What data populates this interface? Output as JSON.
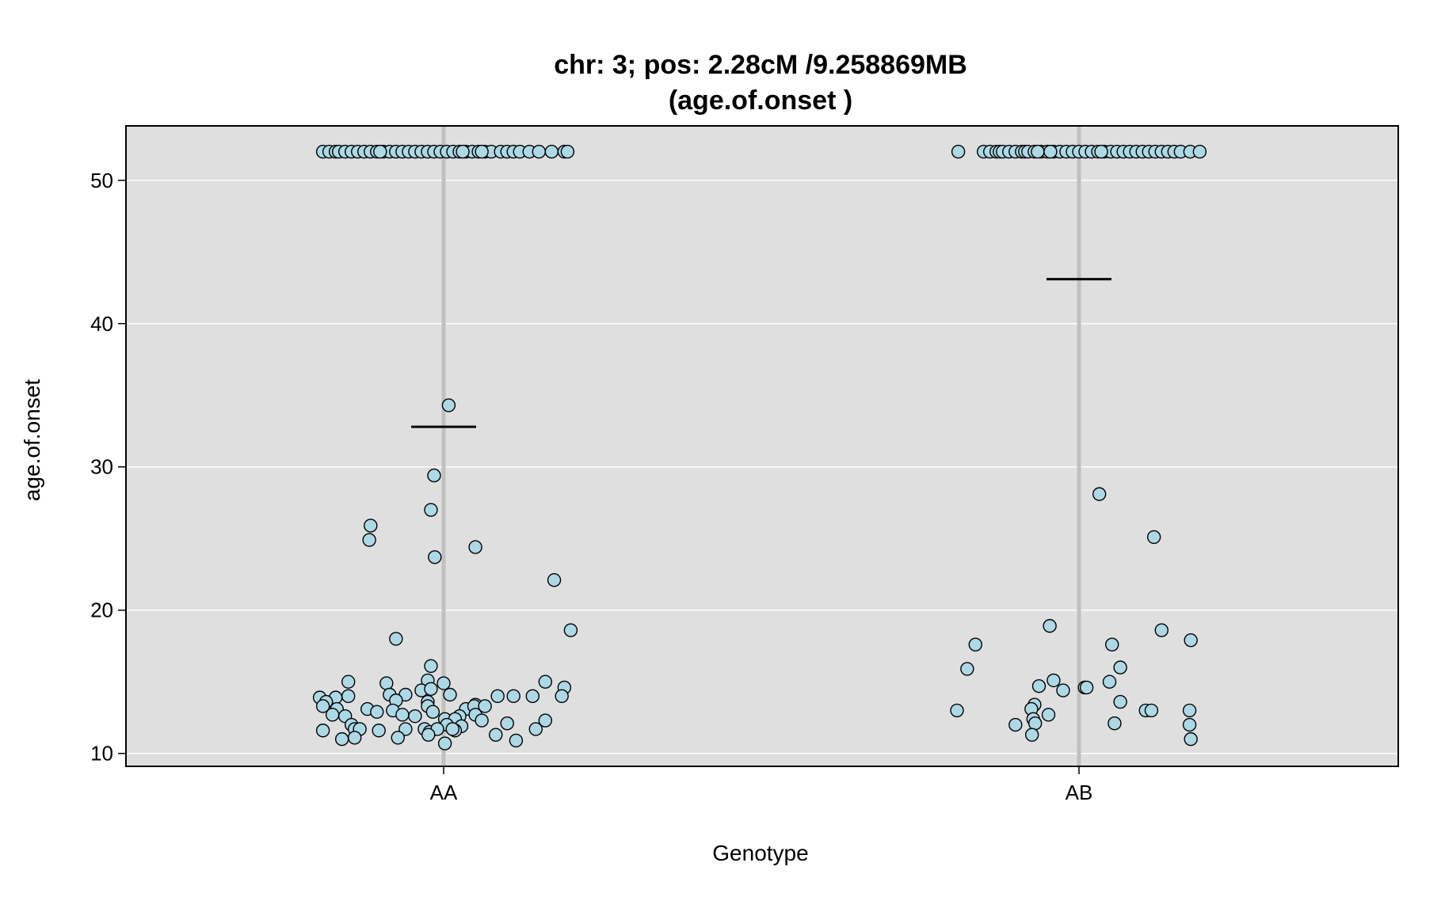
{
  "chart_data": {
    "type": "scatter",
    "title": "chr: 3; pos: 2.28cM /9.258869MB",
    "subtitle": "(age.of.onset )",
    "xlabel": "Genotype",
    "ylabel": "age.of.onset",
    "categories": [
      "AA",
      "AB"
    ],
    "ylim": [
      9.1,
      53.8
    ],
    "yticks": [
      10,
      20,
      30,
      40,
      50
    ],
    "grid": true,
    "colors": {
      "panel": "#dfdfdf",
      "grid": "#ffffff",
      "category_line": "#c0c0c0",
      "point_fill": "#add8e6",
      "point_stroke": "#000000",
      "mean_line": "#000000"
    },
    "means": [
      32.8,
      43.1
    ],
    "series": [
      {
        "category": "AA",
        "points": [
          {
            "x": -0.19,
            "y": 52
          },
          {
            "x": -0.18,
            "y": 52
          },
          {
            "x": -0.17,
            "y": 52
          },
          {
            "x": -0.165,
            "y": 52
          },
          {
            "x": -0.155,
            "y": 52
          },
          {
            "x": -0.145,
            "y": 52
          },
          {
            "x": -0.135,
            "y": 52
          },
          {
            "x": -0.125,
            "y": 52
          },
          {
            "x": -0.115,
            "y": 52
          },
          {
            "x": -0.105,
            "y": 52
          },
          {
            "x": -0.095,
            "y": 52
          },
          {
            "x": -0.085,
            "y": 52
          },
          {
            "x": -0.075,
            "y": 52
          },
          {
            "x": -0.065,
            "y": 52
          },
          {
            "x": -0.055,
            "y": 52
          },
          {
            "x": -0.045,
            "y": 52
          },
          {
            "x": -0.035,
            "y": 52
          },
          {
            "x": -0.025,
            "y": 52
          },
          {
            "x": -0.015,
            "y": 52
          },
          {
            "x": -0.005,
            "y": 52
          },
          {
            "x": 0.005,
            "y": 52
          },
          {
            "x": 0.015,
            "y": 52
          },
          {
            "x": 0.025,
            "y": 52
          },
          {
            "x": 0.035,
            "y": 52
          },
          {
            "x": 0.045,
            "y": 52
          },
          {
            "x": 0.055,
            "y": 52
          },
          {
            "x": 0.065,
            "y": 52
          },
          {
            "x": 0.075,
            "y": 52
          },
          {
            "x": 0.09,
            "y": 52
          },
          {
            "x": 0.1,
            "y": 52
          },
          {
            "x": 0.11,
            "y": 52
          },
          {
            "x": 0.12,
            "y": 52
          },
          {
            "x": 0.135,
            "y": 52
          },
          {
            "x": 0.15,
            "y": 52
          },
          {
            "x": 0.17,
            "y": 52
          },
          {
            "x": 0.19,
            "y": 52
          },
          {
            "x": 0.195,
            "y": 52
          },
          {
            "x": -0.1,
            "y": 52
          },
          {
            "x": 0.03,
            "y": 52
          },
          {
            "x": 0.06,
            "y": 52
          },
          {
            "x": 0.008,
            "y": 34.3
          },
          {
            "x": -0.015,
            "y": 29.4
          },
          {
            "x": -0.02,
            "y": 27.0
          },
          {
            "x": -0.115,
            "y": 25.9
          },
          {
            "x": -0.117,
            "y": 24.9
          },
          {
            "x": 0.05,
            "y": 24.4
          },
          {
            "x": -0.014,
            "y": 23.7
          },
          {
            "x": 0.174,
            "y": 22.1
          },
          {
            "x": 0.2,
            "y": 18.6
          },
          {
            "x": -0.075,
            "y": 18.0
          },
          {
            "x": -0.02,
            "y": 16.1
          },
          {
            "x": -0.15,
            "y": 15.0
          },
          {
            "x": -0.09,
            "y": 14.9
          },
          {
            "x": -0.025,
            "y": 15.1
          },
          {
            "x": 0.0,
            "y": 14.9
          },
          {
            "x": 0.16,
            "y": 15.0
          },
          {
            "x": 0.19,
            "y": 14.6
          },
          {
            "x": -0.195,
            "y": 13.9
          },
          {
            "x": -0.17,
            "y": 13.9
          },
          {
            "x": -0.15,
            "y": 14.0
          },
          {
            "x": -0.085,
            "y": 14.1
          },
          {
            "x": -0.06,
            "y": 14.1
          },
          {
            "x": -0.035,
            "y": 14.4
          },
          {
            "x": 0.01,
            "y": 14.1
          },
          {
            "x": 0.085,
            "y": 14.0
          },
          {
            "x": 0.11,
            "y": 14.0
          },
          {
            "x": 0.14,
            "y": 14.0
          },
          {
            "x": 0.186,
            "y": 14.0
          },
          {
            "x": -0.02,
            "y": 14.5
          },
          {
            "x": -0.185,
            "y": 13.6
          },
          {
            "x": -0.075,
            "y": 13.7
          },
          {
            "x": -0.025,
            "y": 13.6
          },
          {
            "x": 0.05,
            "y": 13.4
          },
          {
            "x": -0.19,
            "y": 13.3
          },
          {
            "x": -0.168,
            "y": 13.1
          },
          {
            "x": -0.12,
            "y": 13.1
          },
          {
            "x": -0.105,
            "y": 12.9
          },
          {
            "x": -0.08,
            "y": 13.0
          },
          {
            "x": -0.025,
            "y": 13.3
          },
          {
            "x": -0.017,
            "y": 12.9
          },
          {
            "x": 0.035,
            "y": 13.1
          },
          {
            "x": 0.048,
            "y": 13.3
          },
          {
            "x": 0.065,
            "y": 13.3
          },
          {
            "x": -0.175,
            "y": 12.7
          },
          {
            "x": -0.155,
            "y": 12.6
          },
          {
            "x": -0.065,
            "y": 12.7
          },
          {
            "x": -0.045,
            "y": 12.6
          },
          {
            "x": 0.025,
            "y": 12.6
          },
          {
            "x": 0.05,
            "y": 12.7
          },
          {
            "x": 0.06,
            "y": 12.3
          },
          {
            "x": 0.16,
            "y": 12.3
          },
          {
            "x": 0.002,
            "y": 12.4
          },
          {
            "x": 0.018,
            "y": 12.4
          },
          {
            "x": -0.145,
            "y": 12.0
          },
          {
            "x": 0.005,
            "y": 12.0
          },
          {
            "x": 0.1,
            "y": 12.1
          },
          {
            "x": 0.028,
            "y": 11.9
          },
          {
            "x": -0.19,
            "y": 11.6
          },
          {
            "x": -0.14,
            "y": 11.7
          },
          {
            "x": -0.132,
            "y": 11.7
          },
          {
            "x": -0.102,
            "y": 11.6
          },
          {
            "x": -0.06,
            "y": 11.7
          },
          {
            "x": -0.03,
            "y": 11.7
          },
          {
            "x": -0.022,
            "y": 11.5
          },
          {
            "x": -0.01,
            "y": 11.7
          },
          {
            "x": 0.018,
            "y": 11.6
          },
          {
            "x": 0.014,
            "y": 11.7
          },
          {
            "x": 0.145,
            "y": 11.7
          },
          {
            "x": -0.024,
            "y": 11.3
          },
          {
            "x": 0.082,
            "y": 11.3
          },
          {
            "x": -0.16,
            "y": 11.0
          },
          {
            "x": -0.14,
            "y": 11.1
          },
          {
            "x": -0.072,
            "y": 11.1
          },
          {
            "x": 0.114,
            "y": 10.9
          },
          {
            "x": 0.002,
            "y": 10.7
          }
        ]
      },
      {
        "category": "AB",
        "points": [
          {
            "x": -0.19,
            "y": 52
          },
          {
            "x": -0.15,
            "y": 52
          },
          {
            "x": -0.14,
            "y": 52
          },
          {
            "x": -0.13,
            "y": 52
          },
          {
            "x": -0.125,
            "y": 52
          },
          {
            "x": -0.12,
            "y": 52
          },
          {
            "x": -0.11,
            "y": 52
          },
          {
            "x": -0.1,
            "y": 52
          },
          {
            "x": -0.09,
            "y": 52
          },
          {
            "x": -0.085,
            "y": 52
          },
          {
            "x": -0.08,
            "y": 52
          },
          {
            "x": -0.07,
            "y": 52
          },
          {
            "x": -0.06,
            "y": 52
          },
          {
            "x": -0.05,
            "y": 52
          },
          {
            "x": -0.04,
            "y": 52
          },
          {
            "x": -0.03,
            "y": 52
          },
          {
            "x": -0.02,
            "y": 52
          },
          {
            "x": -0.01,
            "y": 52
          },
          {
            "x": 0.0,
            "y": 52
          },
          {
            "x": 0.01,
            "y": 52
          },
          {
            "x": 0.02,
            "y": 52
          },
          {
            "x": 0.03,
            "y": 52
          },
          {
            "x": 0.04,
            "y": 52
          },
          {
            "x": 0.05,
            "y": 52
          },
          {
            "x": 0.06,
            "y": 52
          },
          {
            "x": 0.07,
            "y": 52
          },
          {
            "x": 0.08,
            "y": 52
          },
          {
            "x": 0.09,
            "y": 52
          },
          {
            "x": 0.1,
            "y": 52
          },
          {
            "x": 0.11,
            "y": 52
          },
          {
            "x": 0.12,
            "y": 52
          },
          {
            "x": 0.13,
            "y": 52
          },
          {
            "x": 0.14,
            "y": 52
          },
          {
            "x": 0.15,
            "y": 52
          },
          {
            "x": 0.16,
            "y": 52
          },
          {
            "x": 0.175,
            "y": 52
          },
          {
            "x": 0.19,
            "y": 52
          },
          {
            "x": -0.065,
            "y": 52
          },
          {
            "x": -0.045,
            "y": 52
          },
          {
            "x": 0.035,
            "y": 52
          },
          {
            "x": 0.032,
            "y": 28.1
          },
          {
            "x": 0.118,
            "y": 25.1
          },
          {
            "x": -0.046,
            "y": 18.9
          },
          {
            "x": 0.13,
            "y": 18.6
          },
          {
            "x": 0.176,
            "y": 17.9
          },
          {
            "x": -0.163,
            "y": 17.6
          },
          {
            "x": 0.052,
            "y": 17.6
          },
          {
            "x": 0.065,
            "y": 16.0
          },
          {
            "x": -0.176,
            "y": 15.9
          },
          {
            "x": -0.04,
            "y": 15.1
          },
          {
            "x": 0.048,
            "y": 15.0
          },
          {
            "x": -0.063,
            "y": 14.7
          },
          {
            "x": 0.009,
            "y": 14.6
          },
          {
            "x": 0.012,
            "y": 14.6
          },
          {
            "x": -0.025,
            "y": 14.4
          },
          {
            "x": -0.07,
            "y": 13.4
          },
          {
            "x": 0.065,
            "y": 13.6
          },
          {
            "x": -0.192,
            "y": 13.0
          },
          {
            "x": -0.075,
            "y": 13.1
          },
          {
            "x": 0.105,
            "y": 13.0
          },
          {
            "x": 0.114,
            "y": 13.0
          },
          {
            "x": 0.174,
            "y": 13.0
          },
          {
            "x": -0.048,
            "y": 12.7
          },
          {
            "x": -0.072,
            "y": 12.4
          },
          {
            "x": -0.1,
            "y": 12.0
          },
          {
            "x": -0.069,
            "y": 12.1
          },
          {
            "x": 0.056,
            "y": 12.1
          },
          {
            "x": 0.174,
            "y": 12.0
          },
          {
            "x": -0.074,
            "y": 11.3
          },
          {
            "x": 0.176,
            "y": 11.0
          }
        ]
      }
    ]
  }
}
